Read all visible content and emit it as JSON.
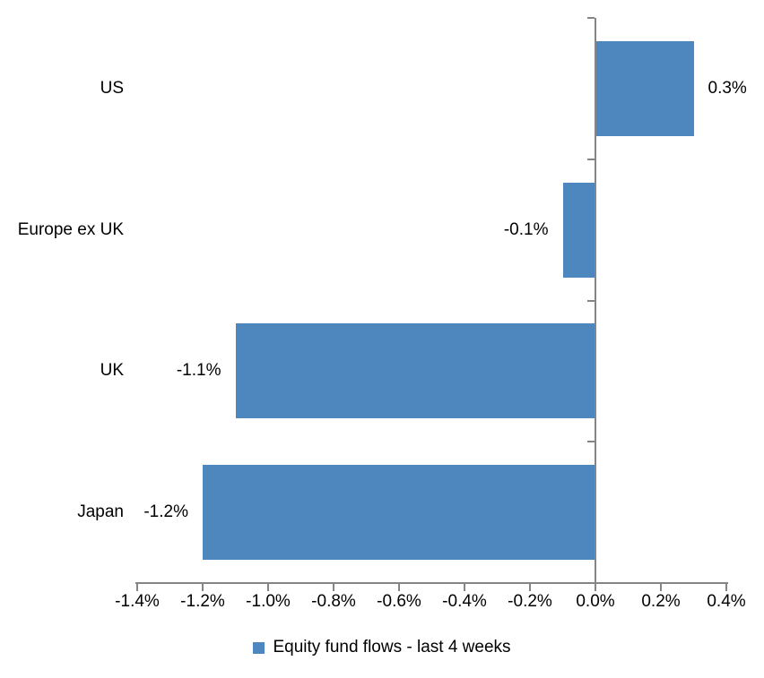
{
  "chart_data": {
    "type": "bar",
    "orientation": "horizontal",
    "title": "",
    "xlabel": "",
    "ylabel": "",
    "categories": [
      "US",
      "Europe ex UK",
      "UK",
      "Japan"
    ],
    "series": [
      {
        "name": "Equity fund flows - last 4 weeks",
        "values": [
          0.3,
          -0.1,
          -1.1,
          -1.2
        ],
        "data_labels": [
          "0.3%",
          "-0.1%",
          "-1.1%",
          "-1.2%"
        ],
        "color": "#4E86BE"
      }
    ],
    "xlim": [
      -1.4,
      0.4
    ],
    "x_ticks": [
      -1.4,
      -1.2,
      -1.0,
      -0.8,
      -0.6,
      -0.4,
      -0.2,
      0.0,
      0.2,
      0.4
    ],
    "x_tick_labels": [
      "-1.4%",
      "-1.2%",
      "-1.0%",
      "-0.8%",
      "-0.6%",
      "-0.4%",
      "-0.2%",
      "0.0%",
      "0.2%",
      "0.4%"
    ],
    "grid": false,
    "legend_position": "bottom",
    "legend": {
      "swatch_color": "#4E86BE",
      "label": "Equity fund flows - last 4 weeks"
    },
    "axis_color": "#858585",
    "text_color": "#000000",
    "background": "#FFFFFF"
  }
}
